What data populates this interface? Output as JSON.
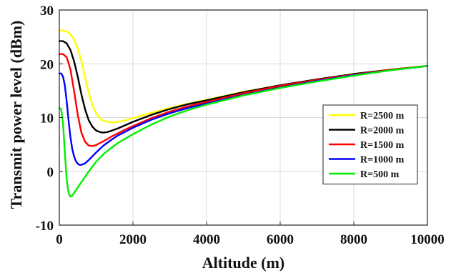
{
  "chart_data": {
    "type": "line",
    "title": "",
    "xlabel": "Altitude (m)",
    "ylabel": "Transmit power level (dBm)",
    "xlim": [
      0,
      10000
    ],
    "ylim": [
      -10,
      30
    ],
    "xticks": [
      0,
      2000,
      4000,
      6000,
      8000,
      10000
    ],
    "yticks": [
      -10,
      0,
      10,
      20,
      30
    ],
    "grid": true,
    "legend_position": "right-middle",
    "series": [
      {
        "name": "R=2500 m",
        "color": "#ffff00",
        "x": [
          0,
          100,
          200,
          300,
          400,
          500,
          600,
          700,
          800,
          900,
          1000,
          1100,
          1200,
          1400,
          1600,
          1800,
          2000,
          2500,
          3000,
          3500,
          4000,
          5000,
          6000,
          7000,
          8000,
          9000,
          10000
        ],
        "y": [
          26.2,
          26.2,
          26.0,
          25.5,
          24.5,
          22.8,
          20.5,
          17.5,
          14.6,
          12.3,
          10.8,
          9.9,
          9.4,
          9.1,
          9.2,
          9.5,
          9.9,
          10.9,
          11.8,
          12.6,
          13.3,
          14.8,
          16.0,
          17.1,
          18.1,
          18.9,
          19.6
        ]
      },
      {
        "name": "R=2000 m",
        "color": "#000000",
        "x": [
          0,
          100,
          200,
          300,
          400,
          500,
          600,
          700,
          800,
          900,
          1000,
          1100,
          1200,
          1300,
          1400,
          1600,
          1800,
          2000,
          2500,
          3000,
          3500,
          4000,
          5000,
          6000,
          7000,
          8000,
          9000,
          10000
        ],
        "y": [
          24.2,
          24.2,
          23.8,
          22.6,
          20.5,
          17.6,
          14.3,
          11.5,
          9.5,
          8.3,
          7.6,
          7.3,
          7.2,
          7.3,
          7.5,
          8.0,
          8.6,
          9.2,
          10.5,
          11.6,
          12.5,
          13.2,
          14.7,
          16.0,
          17.1,
          18.1,
          18.9,
          19.6
        ]
      },
      {
        "name": "R=1500 m",
        "color": "#ff0000",
        "x": [
          0,
          100,
          200,
          300,
          400,
          500,
          600,
          700,
          800,
          900,
          1000,
          1200,
          1400,
          1600,
          1800,
          2000,
          2500,
          3000,
          3500,
          4000,
          5000,
          6000,
          7000,
          8000,
          9000,
          10000
        ],
        "y": [
          21.8,
          21.8,
          21.2,
          19.0,
          15.0,
          10.5,
          7.2,
          5.5,
          4.8,
          4.7,
          4.9,
          5.6,
          6.4,
          7.1,
          7.8,
          8.4,
          9.9,
          11.1,
          12.1,
          12.9,
          14.5,
          15.9,
          17.0,
          18.0,
          18.9,
          19.6
        ]
      },
      {
        "name": "R=1000 m",
        "color": "#0000ff",
        "x": [
          0,
          50,
          100,
          150,
          200,
          250,
          300,
          350,
          400,
          450,
          500,
          550,
          600,
          700,
          800,
          900,
          1000,
          1200,
          1400,
          1600,
          1800,
          2000,
          2500,
          3000,
          3500,
          4000,
          5000,
          6000,
          7000,
          8000,
          9000,
          10000
        ],
        "y": [
          18.2,
          18.2,
          17.6,
          16.0,
          13.0,
          9.5,
          6.4,
          4.2,
          2.8,
          1.9,
          1.4,
          1.2,
          1.2,
          1.5,
          2.1,
          2.8,
          3.5,
          4.8,
          5.8,
          6.7,
          7.4,
          8.1,
          9.6,
          10.8,
          11.8,
          12.6,
          14.2,
          15.6,
          16.8,
          17.9,
          18.8,
          19.6
        ]
      },
      {
        "name": "R=500 m",
        "color": "#00ee00",
        "x": [
          0,
          50,
          100,
          150,
          200,
          250,
          300,
          350,
          400,
          500,
          600,
          700,
          800,
          1000,
          1200,
          1400,
          1600,
          1800,
          2000,
          2500,
          3000,
          3500,
          4000,
          5000,
          6000,
          7000,
          8000,
          9000,
          10000
        ],
        "y": [
          11.8,
          11.5,
          9.0,
          3.5,
          -1.5,
          -4.0,
          -4.7,
          -4.5,
          -4.0,
          -3.0,
          -2.0,
          -1.0,
          0.0,
          1.8,
          3.2,
          4.3,
          5.3,
          6.1,
          6.9,
          8.7,
          10.2,
          11.4,
          12.4,
          14.1,
          15.5,
          16.7,
          17.8,
          18.8,
          19.6
        ]
      }
    ]
  }
}
